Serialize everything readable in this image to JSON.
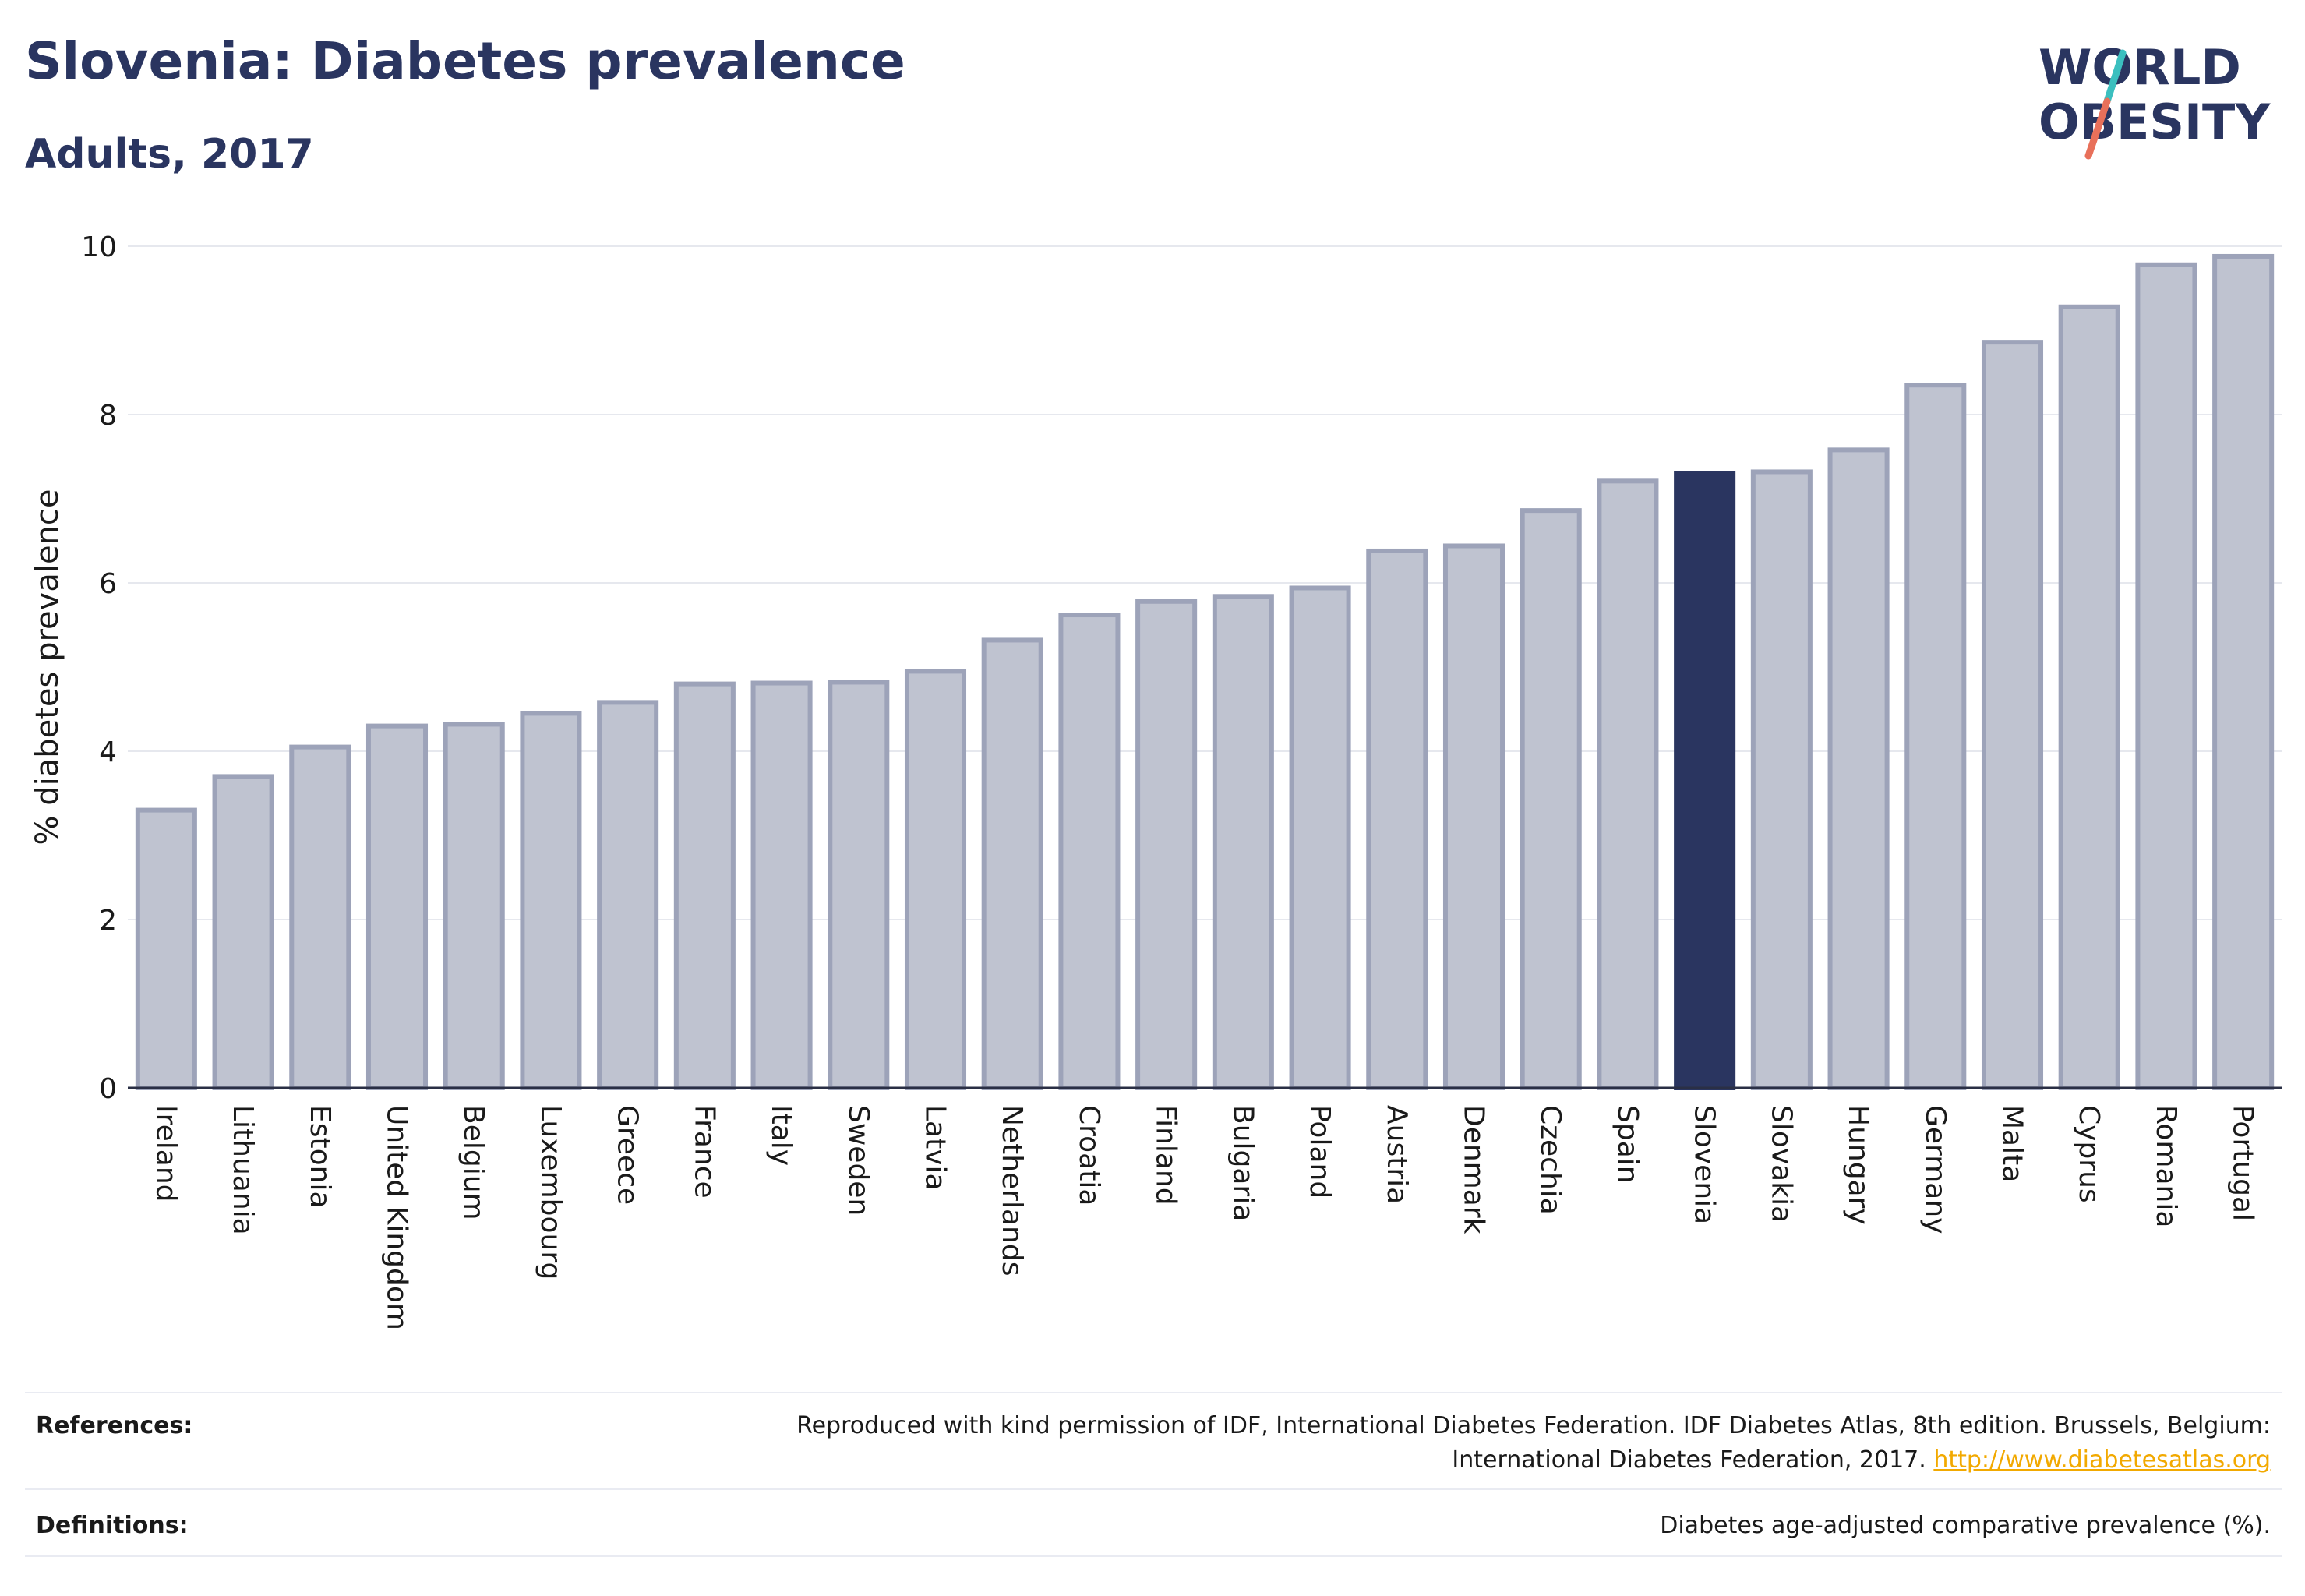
{
  "header": {
    "title": "Slovenia: Diabetes prevalence",
    "subtitle": "Adults, 2017"
  },
  "logo": {
    "line1": "WORLD",
    "line2": "OBESITY",
    "brand_color": "#2a3560",
    "slash_colors": [
      "#3bbfbf",
      "#e8705a"
    ]
  },
  "chart_data": {
    "type": "bar",
    "ylabel": "% diabetes prevalence",
    "ylim": [
      0,
      10
    ],
    "yticks": [
      0,
      2,
      4,
      6,
      8,
      10
    ],
    "grid": true,
    "highlight": "Slovenia",
    "highlight_color": "#2a3560",
    "bar_color": "#bfc3d0",
    "bar_edge_color": "#9da3b9",
    "categories": [
      "Ireland",
      "Lithuania",
      "Estonia",
      "United Kingdom",
      "Belgium",
      "Luxembourg",
      "Greece",
      "France",
      "Italy",
      "Sweden",
      "Latvia",
      "Netherlands",
      "Croatia",
      "Finland",
      "Bulgaria",
      "Poland",
      "Austria",
      "Denmark",
      "Czechia",
      "Spain",
      "Slovenia",
      "Slovakia",
      "Hungary",
      "Germany",
      "Malta",
      "Cyprus",
      "Romania",
      "Portugal"
    ],
    "values": [
      3.3,
      3.7,
      4.05,
      4.3,
      4.32,
      4.45,
      4.58,
      4.8,
      4.81,
      4.82,
      4.95,
      5.32,
      5.62,
      5.78,
      5.84,
      5.94,
      6.38,
      6.44,
      6.86,
      7.21,
      7.3,
      7.32,
      7.58,
      8.35,
      8.86,
      9.28,
      9.78,
      9.88
    ]
  },
  "footer": {
    "references_label": "References:",
    "references_text_1": "Reproduced with kind permission of IDF, International Diabetes Federation. IDF Diabetes Atlas, 8th edition. Brussels, Belgium:",
    "references_text_2": "International Diabetes Federation, 2017.",
    "references_link": "http://www.diabetesatlas.org",
    "definitions_label": "Definitions:",
    "definitions_text": "Diabetes age-adjusted comparative prevalence (%)."
  }
}
